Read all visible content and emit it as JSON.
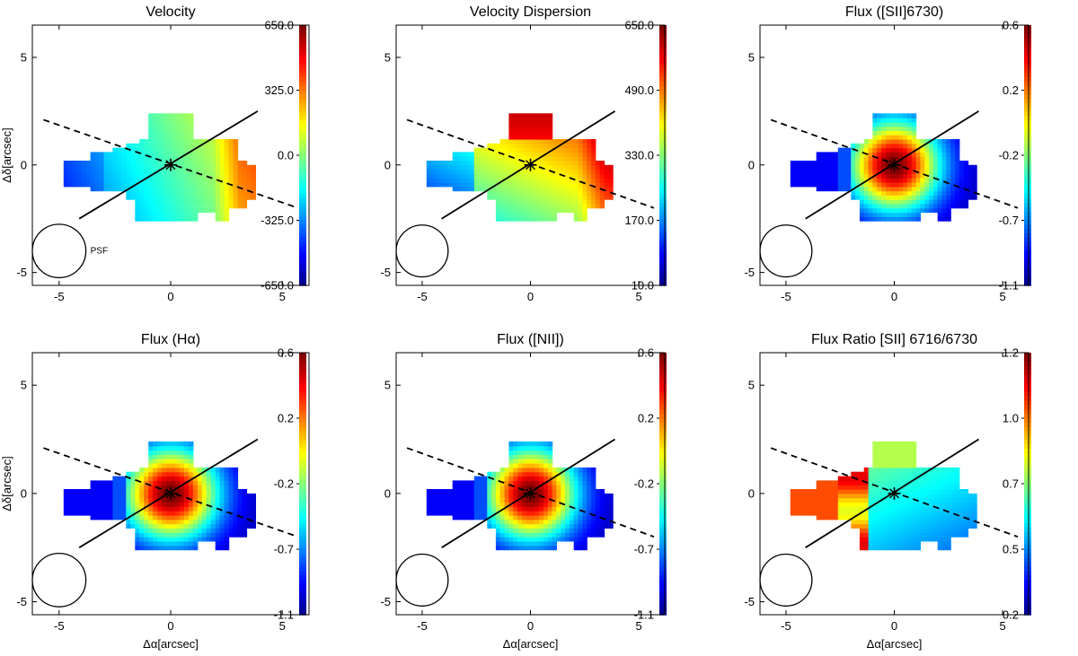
{
  "chart_data": [
    {
      "type": "heatmap",
      "title": "Velocity",
      "xlabel": "",
      "ylabel": "Δδ[arcsec]",
      "xlim": [
        -6.2,
        6.2
      ],
      "ylim": [
        -5.6,
        6.5
      ],
      "xticks": [
        "-5",
        "0",
        "5"
      ],
      "yticks": [
        "5",
        "0",
        "-5"
      ],
      "colorbar": {
        "min": -650.0,
        "max": 650.0,
        "labels": [
          "650.0",
          "325.0",
          "0.0",
          "-325.0",
          "-650.0"
        ]
      },
      "map": {
        "peak": 0.0,
        "gradient": 0.28,
        "blob": 0.0,
        "mode": "velocity"
      },
      "psf_label": "PSF",
      "lines": {
        "solid": {
          "x": [
            -4.1,
            3.9
          ],
          "y": [
            -2.5,
            2.5
          ]
        },
        "dashed": {
          "x": [
            -5.7,
            5.7
          ],
          "y": [
            2.1,
            -2.0
          ]
        }
      },
      "center_marker": "×"
    },
    {
      "type": "heatmap",
      "title": "Velocity Dispersion",
      "xlabel": "",
      "ylabel": "",
      "xlim": [
        -6.2,
        6.2
      ],
      "ylim": [
        -5.6,
        6.5
      ],
      "xticks": [
        "-5",
        "0",
        "5"
      ],
      "yticks": [
        "5",
        "0",
        "-5"
      ],
      "colorbar": {
        "min": 10.0,
        "max": 650.0,
        "labels": [
          "650.0",
          "490.0",
          "330.0",
          "170.0",
          "10.0"
        ]
      },
      "map": {
        "mode": "dispersion"
      },
      "psf_label": "",
      "lines": {
        "solid": {
          "x": [
            -4.1,
            3.9
          ],
          "y": [
            -2.5,
            2.5
          ]
        },
        "dashed": {
          "x": [
            -5.7,
            5.7
          ],
          "y": [
            2.1,
            -2.0
          ]
        }
      },
      "center_marker": "×"
    },
    {
      "type": "heatmap",
      "title": "Flux ([SII]6730)",
      "xlabel": "",
      "ylabel": "",
      "xlim": [
        -6.2,
        6.2
      ],
      "ylim": [
        -5.6,
        6.5
      ],
      "xticks": [
        "-5",
        "0",
        "5"
      ],
      "yticks": [
        "5",
        "0",
        "-5"
      ],
      "colorbar": {
        "min": -1.1,
        "max": 0.6,
        "labels": [
          "0.6",
          "0.2",
          "-0.2",
          "-0.7",
          "-1.1"
        ]
      },
      "map": {
        "mode": "flux"
      },
      "psf_label": "",
      "lines": {
        "solid": {
          "x": [
            -4.1,
            3.9
          ],
          "y": [
            -2.5,
            2.5
          ]
        },
        "dashed": {
          "x": [
            -5.7,
            5.7
          ],
          "y": [
            2.1,
            -2.0
          ]
        }
      },
      "center_marker": "×"
    },
    {
      "type": "heatmap",
      "title": "Flux (Hα)",
      "xlabel": "Δα[arcsec]",
      "ylabel": "Δδ[arcsec]",
      "xlim": [
        -6.2,
        6.2
      ],
      "ylim": [
        -5.6,
        6.5
      ],
      "xticks": [
        "-5",
        "0",
        "5"
      ],
      "yticks": [
        "5",
        "0",
        "-5"
      ],
      "colorbar": {
        "min": -1.1,
        "max": 0.6,
        "labels": [
          "0.6",
          "0.2",
          "-0.2",
          "-0.7",
          "-1.1"
        ]
      },
      "map": {
        "mode": "flux"
      },
      "psf_label": "",
      "lines": {
        "solid": {
          "x": [
            -4.1,
            3.9
          ],
          "y": [
            -2.5,
            2.5
          ]
        },
        "dashed": {
          "x": [
            -5.7,
            5.7
          ],
          "y": [
            2.1,
            -2.0
          ]
        }
      },
      "center_marker": "×"
    },
    {
      "type": "heatmap",
      "title": "Flux ([NII])",
      "xlabel": "Δα[arcsec]",
      "ylabel": "",
      "xlim": [
        -6.2,
        6.2
      ],
      "ylim": [
        -5.6,
        6.5
      ],
      "xticks": [
        "-5",
        "0",
        "5"
      ],
      "yticks": [
        "5",
        "0",
        "-5"
      ],
      "colorbar": {
        "min": -1.1,
        "max": 0.6,
        "labels": [
          "0.6",
          "0.2",
          "-0.2",
          "-0.7",
          "-1.1"
        ]
      },
      "map": {
        "mode": "flux"
      },
      "psf_label": "",
      "lines": {
        "solid": {
          "x": [
            -4.1,
            3.9
          ],
          "y": [
            -2.5,
            2.5
          ]
        },
        "dashed": {
          "x": [
            -5.7,
            5.7
          ],
          "y": [
            2.1,
            -2.0
          ]
        }
      },
      "center_marker": "×"
    },
    {
      "type": "heatmap",
      "title": "Flux Ratio [SII] 6716/6730",
      "xlabel": "Δα[arcsec]",
      "ylabel": "",
      "xlim": [
        -6.2,
        6.2
      ],
      "ylim": [
        -5.6,
        6.5
      ],
      "xticks": [
        "-5",
        "0",
        "5"
      ],
      "yticks": [
        "5",
        "0",
        "-5"
      ],
      "colorbar": {
        "min": 0.2,
        "max": 1.2,
        "labels": [
          "1.2",
          "1.0",
          "0.7",
          "0.5",
          "0.2"
        ]
      },
      "map": {
        "mode": "ratio"
      },
      "psf_label": "",
      "lines": {
        "solid": {
          "x": [
            -4.1,
            3.9
          ],
          "y": [
            -2.5,
            2.5
          ]
        },
        "dashed": {
          "x": [
            -5.7,
            5.7
          ],
          "y": [
            2.1,
            -2.0
          ]
        }
      },
      "center_marker": "×"
    }
  ]
}
